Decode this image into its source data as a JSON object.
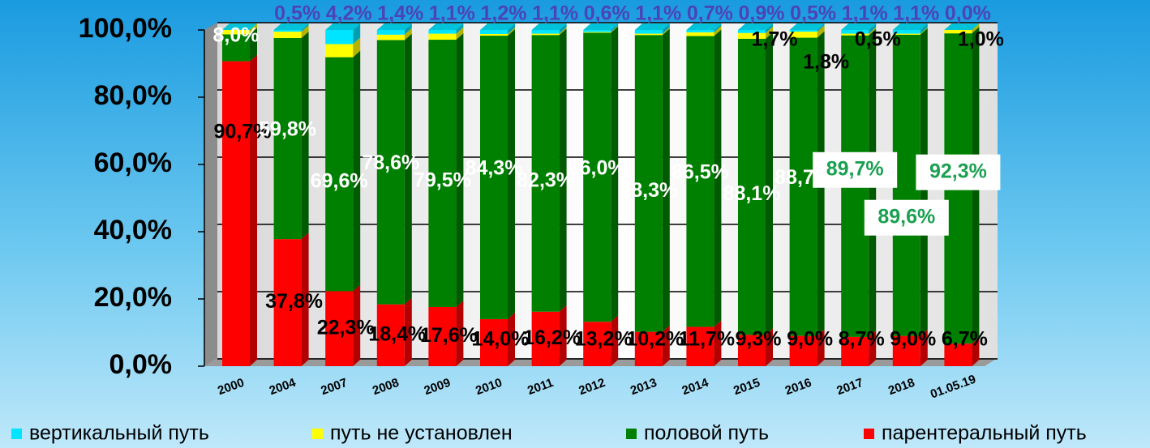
{
  "chart_data": {
    "type": "stacked_bar",
    "categories": [
      "2000",
      "2004",
      "2007",
      "2008",
      "2009",
      "2010",
      "2011",
      "2012",
      "2013",
      "2014",
      "2015",
      "2016",
      "2017",
      "2018",
      "01.05.19"
    ],
    "series": [
      {
        "name": "вертикальный путь",
        "color": "#00e5ff",
        "values": [
          0,
          0.5,
          4.2,
          1.4,
          1.1,
          1.2,
          1.1,
          0.6,
          1.1,
          0.7,
          0.9,
          0.5,
          1.1,
          1.1,
          0.0
        ],
        "value_labels": [
          null,
          "0,5%",
          "4,2%",
          "1,4%",
          "1,1%",
          "1,2%",
          "1,1%",
          "0,6%",
          "1,1%",
          "0,7%",
          "0,9%",
          "0,5%",
          "1,1%",
          "1,1%",
          "0,0%"
        ]
      },
      {
        "name": "путь не установлен",
        "color": "#ffff00",
        "values": [
          1.3,
          1.9,
          3.9,
          1.6,
          1.8,
          0.5,
          0.4,
          0.2,
          0.4,
          1.1,
          1.7,
          1.8,
          0.5,
          0.3,
          1.0
        ],
        "value_labels": [
          null,
          null,
          null,
          null,
          null,
          null,
          null,
          null,
          null,
          null,
          "1,7%",
          "1,8%",
          "0,5%",
          null,
          "1,0%"
        ]
      },
      {
        "name": "половой путь",
        "color": "#008000",
        "values": [
          8.0,
          59.8,
          69.6,
          78.6,
          79.5,
          84.3,
          82.3,
          86.0,
          88.3,
          86.5,
          88.1,
          88.7,
          89.7,
          89.6,
          92.3
        ],
        "value_labels": [
          "8,0%",
          "59,8%",
          "69,6%",
          "78,6%",
          "79,5%",
          "84,3%",
          "82,3%",
          "86,0%",
          "88,3%",
          "86,5%",
          "88,1%",
          "88,7%",
          "89,7%",
          "89,6%",
          "92,3%"
        ]
      },
      {
        "name": "парентеральный путь",
        "color": "#ff0000",
        "values": [
          90.7,
          37.8,
          22.3,
          18.4,
          17.6,
          14.0,
          16.2,
          13.2,
          10.2,
          11.7,
          9.3,
          9.0,
          8.7,
          9.0,
          6.7
        ],
        "value_labels": [
          "90,7%",
          "37,8%",
          "22,3%",
          "18,4%",
          "17,6%",
          "14,0%",
          "16,2%",
          "13,2%",
          "10,2%",
          "11,7%",
          "9,3%",
          "9,0%",
          "8,7%",
          "9,0%",
          "6,7%"
        ]
      }
    ],
    "ylim": [
      0,
      100
    ],
    "yticks": [
      {
        "value": 0,
        "label": "0,0%"
      },
      {
        "value": 20,
        "label": "20,0%"
      },
      {
        "value": 40,
        "label": "40,0%"
      },
      {
        "value": 60,
        "label": "60,0%"
      },
      {
        "value": 80,
        "label": "80,0%"
      },
      {
        "value": 100,
        "label": "100,0%"
      }
    ],
    "grid": true,
    "legend": "bottom"
  }
}
